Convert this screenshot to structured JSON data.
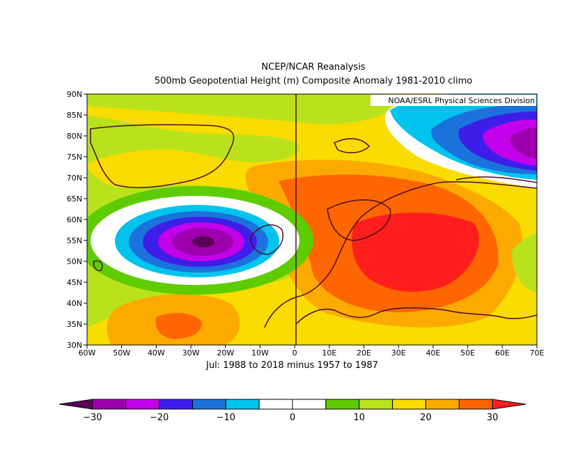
{
  "titles": {
    "line1": "NCEP/NCAR Reanalysis",
    "line2": "500mb Geopotential Height (m) Composite Anomaly 1981-2010 climo"
  },
  "credit": "NOAA/ESRL Physical Sciences Division",
  "subtitle": "Jul: 1988 to 2018 minus 1957 to 1987",
  "lat_labels": [
    "90N",
    "85N",
    "80N",
    "75N",
    "70N",
    "65N",
    "60N",
    "55N",
    "50N",
    "45N",
    "40N",
    "35N",
    "30N"
  ],
  "lon_labels": [
    "60W",
    "50W",
    "40W",
    "30W",
    "20W",
    "10W",
    "0",
    "10E",
    "20E",
    "30E",
    "40E",
    "50E",
    "60E",
    "70E"
  ],
  "colorbar": {
    "colors": [
      "#5a0058",
      "#9c00ac",
      "#c300ea",
      "#3d1ee8",
      "#1c72dc",
      "#00c4ee",
      "#ffffff",
      "#ffffff",
      "#5ecc00",
      "#b9e21c",
      "#f9dc00",
      "#fcaa00",
      "#fd6600",
      "#ff1e1e"
    ],
    "labels": [
      "-30",
      "-20",
      "-10",
      "0",
      "10",
      "20",
      "30"
    ]
  },
  "chart_data": {
    "type": "heatmap",
    "variable": "500mb Geopotential Height (m) Composite Anomaly",
    "extent": {
      "lon": [
        -60,
        70
      ],
      "lat": [
        30,
        90
      ]
    },
    "levels": [
      -30,
      -25,
      -20,
      -15,
      -10,
      -5,
      0,
      5,
      10,
      15,
      20,
      25,
      30
    ],
    "features": [
      {
        "name": "low-anomaly",
        "lon": -27,
        "lat": 54,
        "value": -28
      },
      {
        "name": "low-anomaly",
        "lon": 65,
        "lat": 80,
        "value": -25
      },
      {
        "name": "high-anomaly",
        "lon": 35,
        "lat": 53,
        "value": 32
      },
      {
        "name": "high-anomaly",
        "lon": -27,
        "lat": 35,
        "value": 26
      }
    ]
  }
}
